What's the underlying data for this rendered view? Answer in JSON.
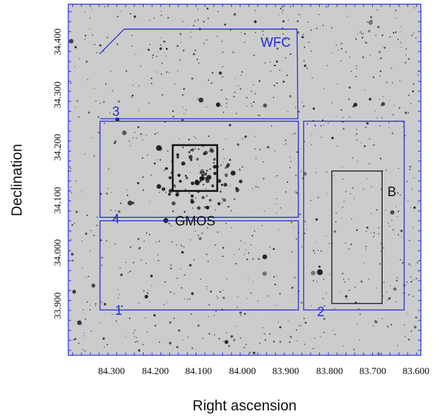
{
  "colors": {
    "region_outline": "#1f2bd6",
    "instrument_outline": "#111111",
    "sky_background": "#cfcfcf",
    "star": "#141414"
  },
  "axes": {
    "xlabel": "Right ascension",
    "ylabel": "Declination",
    "x_range": [
      84.37,
      83.57
    ],
    "y_range": [
      33.77,
      34.475
    ],
    "x_ticks": [
      "84.300",
      "84.200",
      "84.100",
      "84.000",
      "83.900",
      "83.800",
      "83.700",
      "83.600"
    ],
    "x_tick_values": [
      84.3,
      84.2,
      84.1,
      84.0,
      83.9,
      83.8,
      83.7,
      83.6
    ],
    "y_ticks": [
      "33.900",
      "34.000",
      "34.100",
      "34.200",
      "34.300",
      "34.400"
    ],
    "y_tick_values": [
      33.9,
      34.0,
      34.1,
      34.2,
      34.3,
      34.4
    ]
  },
  "regions": [
    {
      "id": "wfc",
      "label": "WFC",
      "color": "#1f2bd6",
      "type": "polygon",
      "points": [
        [
          84.299,
          34.375
        ],
        [
          84.243,
          34.425
        ],
        [
          83.851,
          34.425
        ],
        [
          83.849,
          34.245
        ],
        [
          84.298,
          34.245
        ]
      ]
    },
    {
      "id": "r3",
      "label": "3",
      "color": "#1f2bd6"
    },
    {
      "id": "r4",
      "label": "4",
      "color": "#1f2bd6",
      "type": "rect",
      "x1": 84.298,
      "x2": 83.848,
      "y1": 34.047,
      "y2": 34.24
    },
    {
      "id": "r1",
      "label": "1",
      "color": "#1f2bd6",
      "type": "rect",
      "x1": 84.298,
      "x2": 83.848,
      "y1": 33.861,
      "y2": 34.04
    },
    {
      "id": "r2",
      "label": "2",
      "color": "#1f2bd6",
      "type": "rect",
      "x1": 83.836,
      "x2": 83.608,
      "y1": 33.861,
      "y2": 34.24
    },
    {
      "id": "gmos",
      "label": "GMOS",
      "color": "#111111",
      "type": "rect",
      "x1": 84.133,
      "x2": 84.032,
      "y1": 34.1,
      "y2": 34.192
    },
    {
      "id": "b",
      "label": "B",
      "color": "#111111",
      "type": "rect",
      "x1": 83.772,
      "x2": 83.658,
      "y1": 33.874,
      "y2": 34.14
    }
  ]
}
